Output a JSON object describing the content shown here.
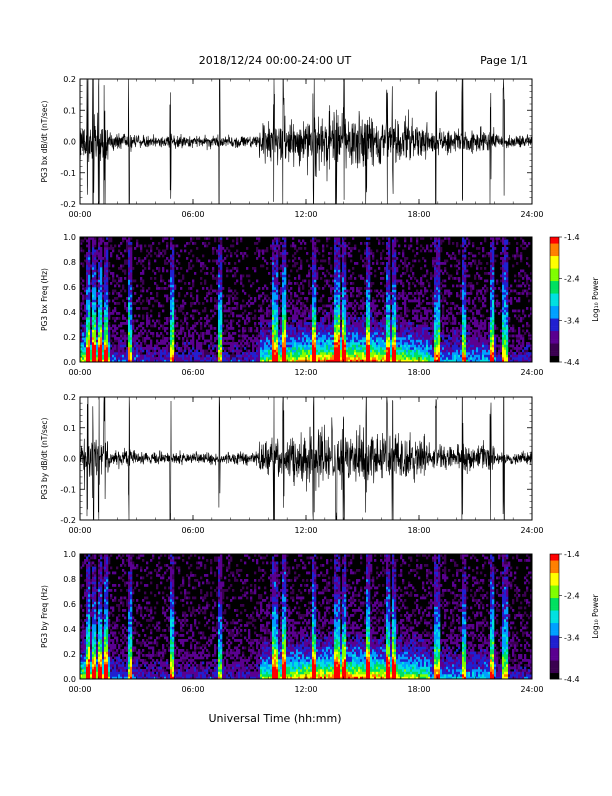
{
  "header": {
    "title": "2018/12/24   00:00-24:00 UT",
    "page": "Page 1/1"
  },
  "footer": {
    "xlabel": "Universal Time (hh:mm)"
  },
  "colorbar": {
    "label": "Log₁₀ Power",
    "ticks": [
      "-1.4",
      "-2.4",
      "-3.4",
      "-4.4"
    ],
    "colors": [
      "#000000",
      "#3a0050",
      "#5a0090",
      "#2020d0",
      "#00a0ff",
      "#00e0e0",
      "#00e060",
      "#80ff00",
      "#ffff00",
      "#ff8000",
      "#ff0000"
    ]
  },
  "chart_data": [
    {
      "type": "line",
      "ylabel": "PG3 bx dB/dt (nT/sec)",
      "ylim": [
        -0.2,
        0.2
      ],
      "yticks": [
        "0.2",
        "0.1",
        "0.0",
        "-0.1",
        "-0.2"
      ],
      "xlim": [
        "00:00",
        "24:00"
      ],
      "xticks": [
        "00:00",
        "06:00",
        "12:00",
        "18:00",
        "24:00"
      ]
    },
    {
      "type": "heatmap",
      "ylabel": "PG3 bx Freq (Hz)",
      "ylim": [
        0.0,
        1.0
      ],
      "yticks": [
        "1.0",
        "0.8",
        "0.6",
        "0.4",
        "0.2",
        "0.0"
      ],
      "xlim": [
        "00:00",
        "24:00"
      ],
      "xticks": [
        "00:00",
        "06:00",
        "12:00",
        "18:00",
        "24:00"
      ],
      "zlim": [
        -4.4,
        -1.4
      ]
    },
    {
      "type": "line",
      "ylabel": "PG3 by dB/dt (nT/sec)",
      "ylim": [
        -0.2,
        0.2
      ],
      "yticks": [
        "0.2",
        "0.1",
        "0.0",
        "-0.1",
        "-0.2"
      ],
      "xlim": [
        "00:00",
        "24:00"
      ],
      "xticks": [
        "00:00",
        "06:00",
        "12:00",
        "18:00",
        "24:00"
      ]
    },
    {
      "type": "heatmap",
      "ylabel": "PG3 by Freq (Hz)",
      "ylim": [
        0.0,
        1.0
      ],
      "yticks": [
        "1.0",
        "0.8",
        "0.6",
        "0.4",
        "0.2",
        "0.0"
      ],
      "xlim": [
        "00:00",
        "24:00"
      ],
      "xticks": [
        "00:00",
        "06:00",
        "12:00",
        "18:00",
        "24:00"
      ],
      "zlim": [
        -4.4,
        -1.4
      ]
    }
  ]
}
